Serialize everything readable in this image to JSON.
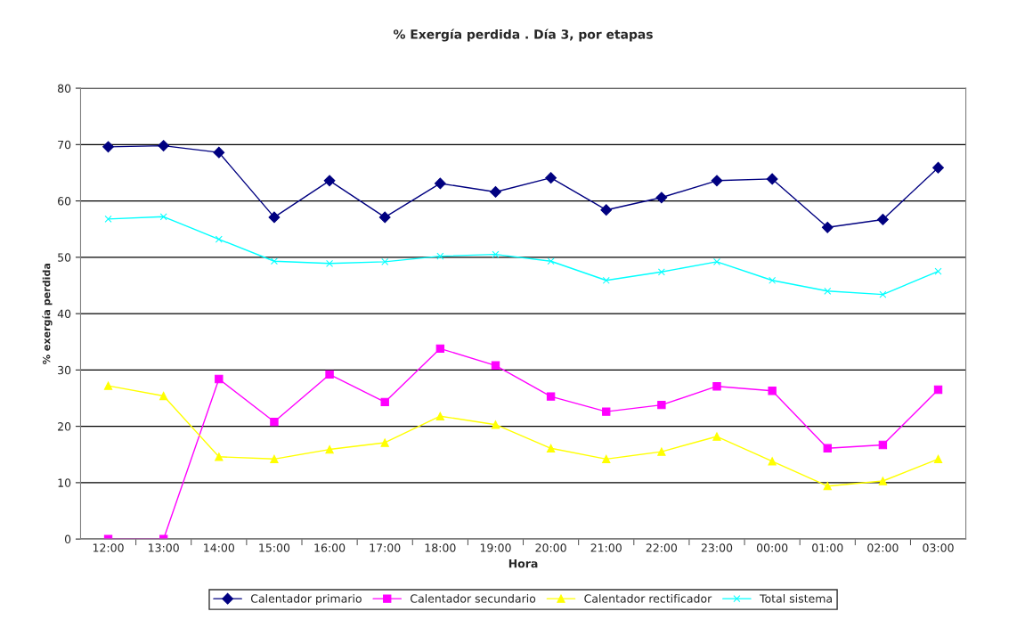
{
  "chart_data": {
    "type": "line",
    "title": "% Exergía perdida . Día 3, por etapas",
    "xlabel": "Hora",
    "ylabel": "% exergía perdida",
    "categories": [
      "12:00",
      "13:00",
      "14:00",
      "15:00",
      "16:00",
      "17:00",
      "18:00",
      "19:00",
      "20:00",
      "21:00",
      "22:00",
      "23:00",
      "00:00",
      "01:00",
      "02:00",
      "03:00"
    ],
    "series": [
      {
        "name": "Calentador primario",
        "color": "#000080",
        "marker": "diamond",
        "values": [
          69.6,
          69.8,
          68.6,
          57.1,
          63.6,
          57.1,
          63.1,
          61.6,
          64.1,
          58.4,
          60.6,
          63.6,
          63.9,
          55.3,
          56.7,
          65.9
        ]
      },
      {
        "name": "Calentador secundario",
        "color": "#ff00ff",
        "marker": "square",
        "values": [
          0,
          0,
          28.4,
          20.8,
          29.2,
          24.3,
          33.8,
          30.8,
          25.3,
          22.6,
          23.8,
          27.1,
          26.3,
          16.1,
          16.7,
          26.5
        ]
      },
      {
        "name": "Calentador rectificador",
        "color": "#ffff00",
        "marker": "triangle",
        "values": [
          27.2,
          25.4,
          14.6,
          14.2,
          15.9,
          17.1,
          21.8,
          20.3,
          16.1,
          14.2,
          15.5,
          18.2,
          13.8,
          9.4,
          10.3,
          14.2
        ]
      },
      {
        "name": "Total sistema",
        "color": "#00ffff",
        "marker": "cross",
        "values": [
          56.8,
          57.2,
          53.2,
          49.3,
          48.9,
          49.2,
          50.2,
          50.5,
          49.3,
          45.9,
          47.4,
          49.2,
          45.9,
          44.0,
          43.4,
          47.5
        ]
      }
    ],
    "ylim": [
      0,
      80
    ],
    "yticks": [
      0,
      10,
      20,
      30,
      40,
      50,
      60,
      70,
      80
    ],
    "grid": "y",
    "legend": "bottom"
  }
}
